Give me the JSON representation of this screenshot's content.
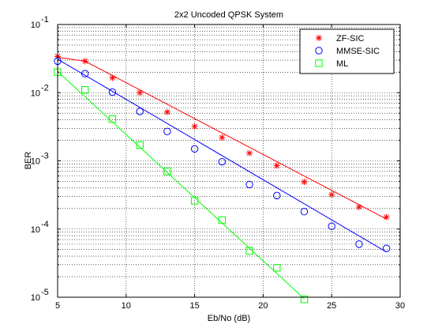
{
  "chart_data": {
    "type": "line",
    "title": "2x2 Uncoded QPSK System",
    "xlabel": "Eb/No (dB)",
    "ylabel": "BER",
    "xlim": [
      5,
      30
    ],
    "ylim": [
      1e-05,
      0.1
    ],
    "yscale": "log",
    "grid": "on",
    "legend_position": "top-right",
    "x_ticks": [
      5,
      10,
      15,
      20,
      25,
      30
    ],
    "y_tick_exponents": [
      -1,
      -2,
      -3,
      -4,
      -5
    ],
    "series": [
      {
        "name": "ZF-SIC",
        "color": "#ff0000",
        "marker": "star",
        "points": [
          [
            5,
            0.034
          ],
          [
            7,
            0.029
          ],
          [
            9,
            0.0165
          ],
          [
            11,
            0.01
          ],
          [
            13,
            0.0052
          ],
          [
            15,
            0.0032
          ],
          [
            17,
            0.0022
          ],
          [
            19,
            0.0013
          ],
          [
            21,
            0.00085
          ],
          [
            23,
            0.00049
          ],
          [
            25,
            0.00032
          ],
          [
            27,
            0.00021
          ],
          [
            29,
            0.00015
          ]
        ],
        "fit": [
          [
            5,
            0.033
          ],
          [
            7,
            0.029
          ],
          [
            29,
            0.00014
          ]
        ]
      },
      {
        "name": "MMSE-SIC",
        "color": "#0000ff",
        "marker": "circle",
        "points": [
          [
            5,
            0.029
          ],
          [
            7,
            0.019
          ],
          [
            9,
            0.0102
          ],
          [
            11,
            0.0053
          ],
          [
            13,
            0.0027
          ],
          [
            15,
            0.0015
          ],
          [
            17,
            0.00097
          ],
          [
            19,
            0.00045
          ],
          [
            21,
            0.00031
          ],
          [
            23,
            0.00018
          ],
          [
            25,
            0.00011
          ],
          [
            27,
            6e-05
          ],
          [
            29,
            5.2e-05
          ]
        ],
        "fit": [
          [
            5,
            0.031
          ],
          [
            29,
            4.6e-05
          ]
        ]
      },
      {
        "name": "ML",
        "color": "#00ff00",
        "marker": "square",
        "points": [
          [
            5,
            0.02
          ],
          [
            7,
            0.011
          ],
          [
            9,
            0.0041
          ],
          [
            11,
            0.0017
          ],
          [
            13,
            0.0007
          ],
          [
            15,
            0.00026
          ],
          [
            17,
            0.000135
          ],
          [
            19,
            4.8e-05
          ],
          [
            21,
            2.7e-05
          ],
          [
            23,
            9.3e-06
          ]
        ],
        "fit": [
          [
            5,
            0.0205
          ],
          [
            23,
            9.5e-06
          ]
        ]
      }
    ]
  }
}
